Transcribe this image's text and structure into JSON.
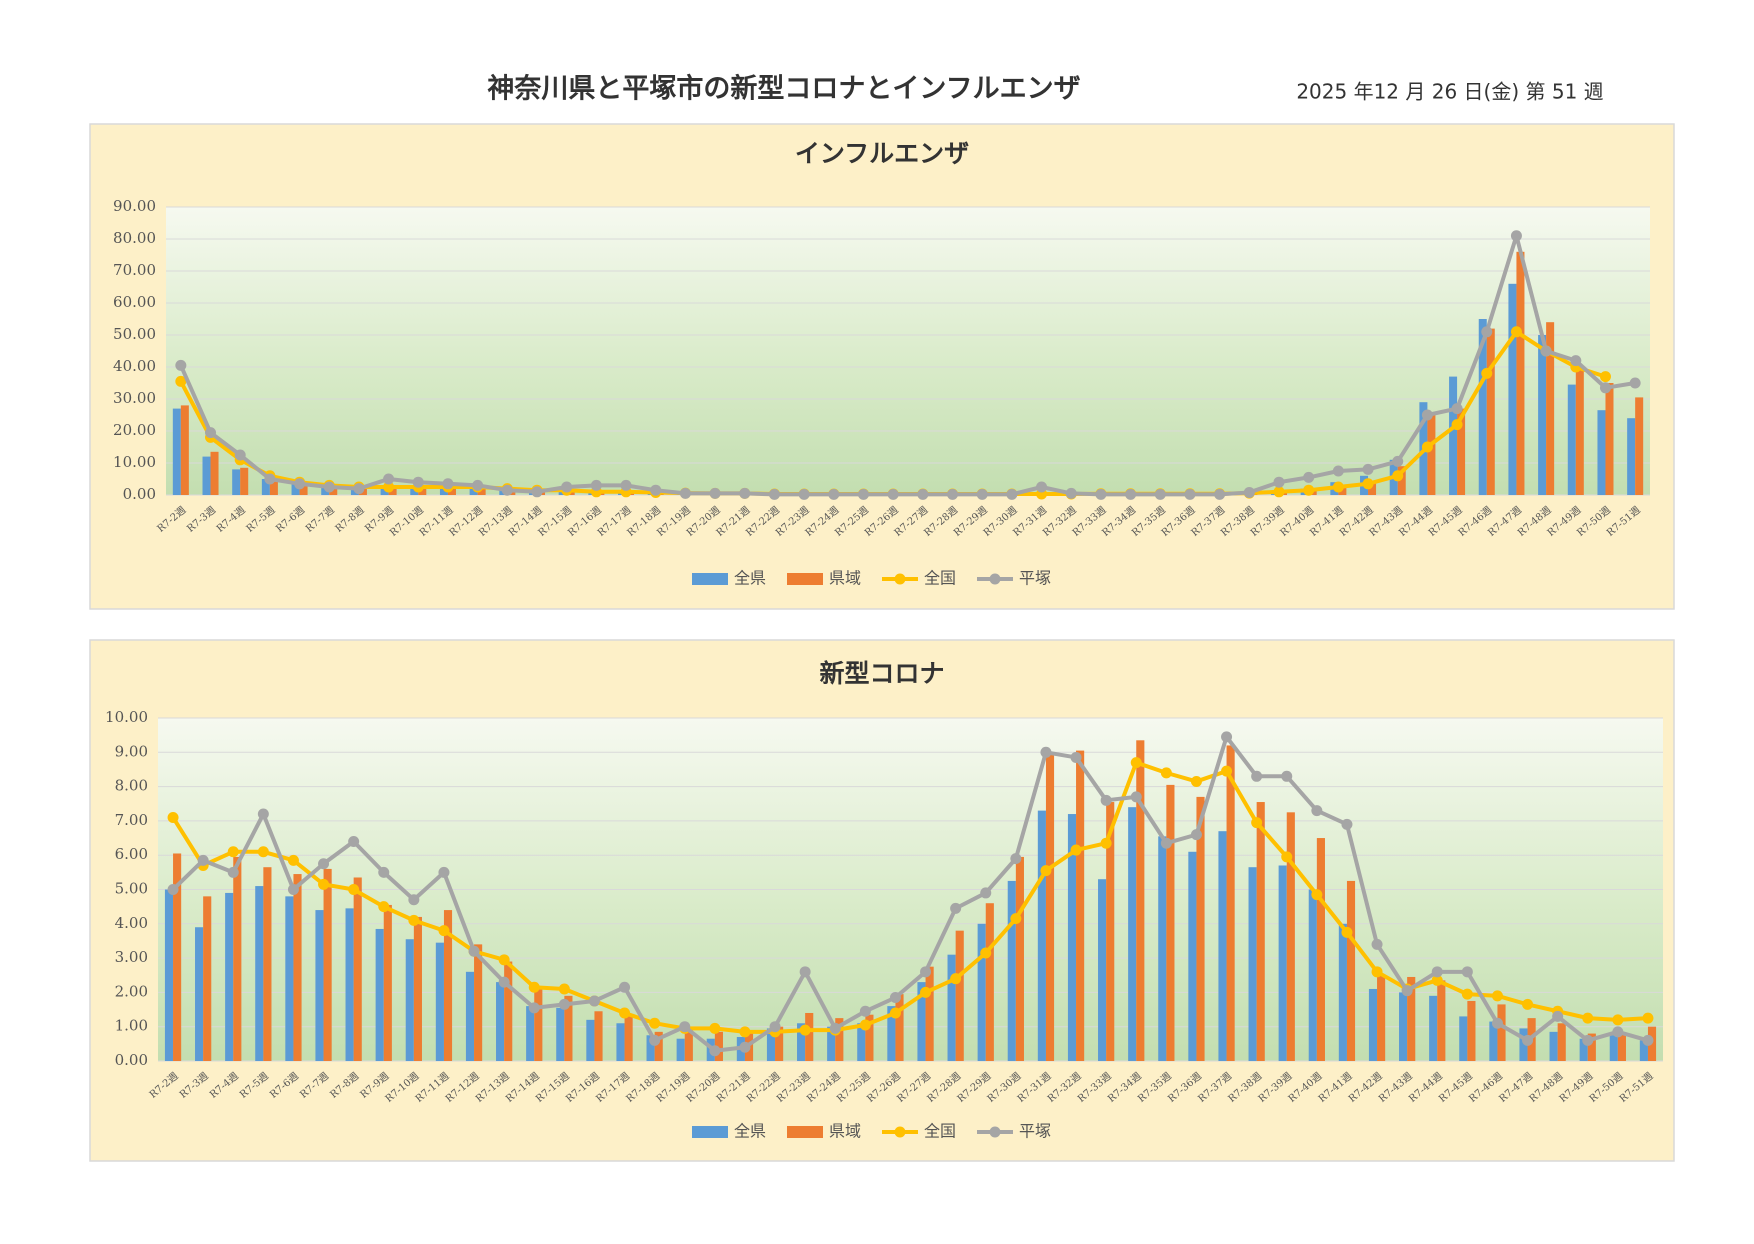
{
  "title": "神奈川県と平塚市の新型コロナとインフルエンザ",
  "date": "2025 年12 月 26 日(金) 第 51 週",
  "chart_data": [
    {
      "type": "combo",
      "title": "インフルエンザ",
      "categories": [
        "R7-2週",
        "R7-3週",
        "R7-4週",
        "R7-5週",
        "R7-6週",
        "R7-7週",
        "R7-8週",
        "R7-9週",
        "R7-10週",
        "R7-11週",
        "R7-12週",
        "R7-13週",
        "R7-14週",
        "R7-15週",
        "R7-16週",
        "R7-17週",
        "R7-18週",
        "R7-19週",
        "R7-20週",
        "R7-21週",
        "R7-22週",
        "R7-23週",
        "R7-24週",
        "R7-25週",
        "R7-26週",
        "R7-27週",
        "R7-28週",
        "R7-29週",
        "R7-30週",
        "R7-31週",
        "R7-32週",
        "R7-33週",
        "R7-34週",
        "R7-35週",
        "R7-36週",
        "R7-37週",
        "R7-38週",
        "R7-39週",
        "R7-40週",
        "R7-41週",
        "R7-42週",
        "R7-43週",
        "R7-44週",
        "R7-45週",
        "R7-46週",
        "R7-47週",
        "R7-48週",
        "R7-49週",
        "R7-50週",
        "R7-51週"
      ],
      "series": [
        {
          "name": "全県",
          "type": "bar",
          "color": "#5b9bd5",
          "values": [
            27,
            12,
            8,
            5,
            3.5,
            2.5,
            2,
            2,
            2,
            2,
            2,
            1.5,
            1,
            1,
            1,
            0.8,
            0.5,
            0.5,
            0.5,
            0.4,
            0.2,
            0.2,
            0.2,
            0.2,
            0.2,
            0.2,
            0.2,
            0.2,
            0.2,
            0.2,
            0.2,
            0.2,
            0.2,
            0.2,
            0.2,
            0.2,
            0.5,
            1,
            2,
            4,
            6,
            11,
            29,
            37,
            55,
            66,
            50,
            34.5,
            26.5,
            24
          ]
        },
        {
          "name": "県域",
          "type": "bar",
          "color": "#ed7d31",
          "values": [
            28,
            13.5,
            8.5,
            5,
            3.5,
            2.5,
            2,
            2,
            2,
            2.5,
            2,
            1.5,
            1,
            1,
            1,
            0.8,
            0.5,
            0.5,
            0.5,
            0.4,
            0.2,
            0.2,
            0.2,
            0.2,
            0.2,
            0.2,
            0.2,
            0.2,
            0.2,
            0.2,
            0.2,
            0.2,
            0.2,
            0.2,
            0.2,
            0.2,
            0.5,
            1,
            2,
            3,
            4.5,
            9,
            25,
            27,
            52,
            76,
            54,
            39,
            35,
            30.5
          ]
        },
        {
          "name": "全国",
          "type": "line",
          "color": "#ffc000",
          "values": [
            35.5,
            18,
            11,
            6,
            4,
            3,
            2.5,
            2.5,
            2.5,
            2.5,
            2.5,
            2,
            1.5,
            1.5,
            1,
            1,
            0.8,
            0.6,
            0.5,
            0.5,
            0.3,
            0.3,
            0.3,
            0.3,
            0.3,
            0.3,
            0.3,
            0.3,
            0.3,
            0.3,
            0.3,
            0.4,
            0.4,
            0.4,
            0.4,
            0.4,
            0.6,
            1,
            1.5,
            2.5,
            3.5,
            6,
            15,
            22,
            38,
            51,
            45,
            40,
            37,
            null
          ]
        },
        {
          "name": "平塚",
          "type": "line",
          "color": "#a5a5a5",
          "values": [
            40.5,
            19.5,
            12.5,
            5,
            3.5,
            2.5,
            2,
            5,
            4,
            3.5,
            3,
            1.5,
            1,
            2.5,
            3,
            3,
            1.5,
            0.5,
            0.5,
            0.5,
            0.2,
            0.2,
            0.2,
            0.2,
            0.2,
            0.2,
            0.2,
            0.2,
            0.2,
            2.5,
            0.5,
            0.2,
            0.2,
            0.2,
            0.2,
            0.2,
            0.8,
            4,
            5.5,
            7.5,
            8,
            10.5,
            25,
            27,
            51,
            81,
            45,
            42,
            33.5,
            35
          ]
        }
      ],
      "ylim": [
        0,
        90
      ],
      "yticks": [
        {
          "value": 0,
          "label": "0.00"
        },
        {
          "value": 10,
          "label": "10.00"
        },
        {
          "value": 20,
          "label": "20.00"
        },
        {
          "value": 30,
          "label": "30.00"
        },
        {
          "value": 40,
          "label": "40.00"
        },
        {
          "value": 50,
          "label": "50.00"
        },
        {
          "value": 60,
          "label": "60.00"
        },
        {
          "value": 70,
          "label": "70.00"
        },
        {
          "value": 80,
          "label": "80.00"
        },
        {
          "value": 90,
          "label": "90.00"
        }
      ],
      "grid": true,
      "legend": "bottom"
    },
    {
      "type": "combo",
      "title": "新型コロナ",
      "categories": [
        "R7-2週",
        "R7-3週",
        "R7-4週",
        "R7-5週",
        "R7-6週",
        "R7-7週",
        "R7-8週",
        "R7-9週",
        "R7-10週",
        "R7-11週",
        "R7-12週",
        "R7-13週",
        "R7-14週",
        "R7-15週",
        "R7-16週",
        "R7-17週",
        "R7-18週",
        "R7-19週",
        "R7-20週",
        "R7-21週",
        "R7-22週",
        "R7-23週",
        "R7-24週",
        "R7-25週",
        "R7-26週",
        "R7-27週",
        "R7-28週",
        "R7-29週",
        "R7-30週",
        "R7-31週",
        "R7-32週",
        "R7-33週",
        "R7-34週",
        "R7-35週",
        "R7-36週",
        "R7-37週",
        "R7-38週",
        "R7-39週",
        "R7-40週",
        "R7-41週",
        "R7-42週",
        "R7-43週",
        "R7-44週",
        "R7-45週",
        "R7-46週",
        "R7-47週",
        "R7-48週",
        "R7-49週",
        "R7-50週",
        "R7-51週"
      ],
      "series": [
        {
          "name": "全県",
          "type": "bar",
          "color": "#5b9bd5",
          "values": [
            5.0,
            3.9,
            4.9,
            5.1,
            4.8,
            4.4,
            4.45,
            3.85,
            3.55,
            3.45,
            2.6,
            2.3,
            1.6,
            1.55,
            1.2,
            1.1,
            0.75,
            0.65,
            0.65,
            0.7,
            0.95,
            1.1,
            1.0,
            1.1,
            1.6,
            2.3,
            3.1,
            4.0,
            5.25,
            7.3,
            7.2,
            5.3,
            7.4,
            6.55,
            6.1,
            6.7,
            5.65,
            5.7,
            5.0,
            4.0,
            2.1,
            2.0,
            1.9,
            1.3,
            1.15,
            0.95,
            0.85,
            0.65,
            0.75,
            0.6
          ]
        },
        {
          "name": "県域",
          "type": "bar",
          "color": "#ed7d31",
          "values": [
            6.05,
            4.8,
            5.95,
            5.65,
            5.45,
            5.6,
            5.35,
            4.55,
            4.2,
            4.4,
            3.4,
            2.9,
            2.1,
            1.9,
            1.45,
            1.3,
            0.85,
            0.9,
            0.85,
            0.8,
            1.0,
            1.4,
            1.25,
            1.35,
            1.95,
            2.75,
            3.8,
            4.6,
            5.95,
            8.95,
            9.05,
            7.55,
            9.35,
            8.05,
            7.7,
            9.2,
            7.55,
            7.25,
            6.5,
            5.25,
            2.5,
            2.45,
            2.35,
            1.75,
            1.65,
            1.25,
            1.1,
            0.8,
            0.8,
            1.0
          ]
        },
        {
          "name": "全国",
          "type": "line",
          "color": "#ffc000",
          "values": [
            7.1,
            5.7,
            6.1,
            6.1,
            5.85,
            5.15,
            5.0,
            4.5,
            4.1,
            3.8,
            3.2,
            2.95,
            2.15,
            2.1,
            1.75,
            1.4,
            1.1,
            0.95,
            0.95,
            0.85,
            0.85,
            0.9,
            0.9,
            1.05,
            1.4,
            2.0,
            2.4,
            3.15,
            4.15,
            5.55,
            6.15,
            6.35,
            8.7,
            8.4,
            8.15,
            8.45,
            6.95,
            5.95,
            4.85,
            3.75,
            2.6,
            2.1,
            2.35,
            1.95,
            1.9,
            1.65,
            1.45,
            1.25,
            1.2,
            1.25
          ]
        },
        {
          "name": "平塚",
          "type": "line",
          "color": "#a5a5a5",
          "values": [
            5.0,
            5.85,
            5.5,
            7.2,
            5.0,
            5.75,
            6.4,
            5.5,
            4.7,
            5.5,
            3.2,
            2.3,
            1.55,
            1.65,
            1.75,
            2.15,
            0.6,
            1.0,
            0.3,
            0.4,
            1.0,
            2.6,
            0.95,
            1.45,
            1.85,
            2.6,
            4.45,
            4.9,
            5.9,
            9.0,
            8.85,
            7.6,
            7.7,
            6.35,
            6.6,
            9.45,
            8.3,
            8.3,
            7.3,
            6.9,
            3.4,
            2.05,
            2.6,
            2.6,
            1.1,
            0.6,
            1.3,
            0.6,
            0.85,
            0.6
          ]
        }
      ],
      "ylim": [
        0,
        10
      ],
      "yticks": [
        {
          "value": 0,
          "label": "0.00"
        },
        {
          "value": 1,
          "label": "1.00"
        },
        {
          "value": 2,
          "label": "2.00"
        },
        {
          "value": 3,
          "label": "3.00"
        },
        {
          "value": 4,
          "label": "4.00"
        },
        {
          "value": 5,
          "label": "5.00"
        },
        {
          "value": 6,
          "label": "6.00"
        },
        {
          "value": 7,
          "label": "7.00"
        },
        {
          "value": 8,
          "label": "8.00"
        },
        {
          "value": 9,
          "label": "9.00"
        },
        {
          "value": 10,
          "label": "10.00"
        }
      ],
      "grid": true,
      "legend": "bottom"
    }
  ]
}
